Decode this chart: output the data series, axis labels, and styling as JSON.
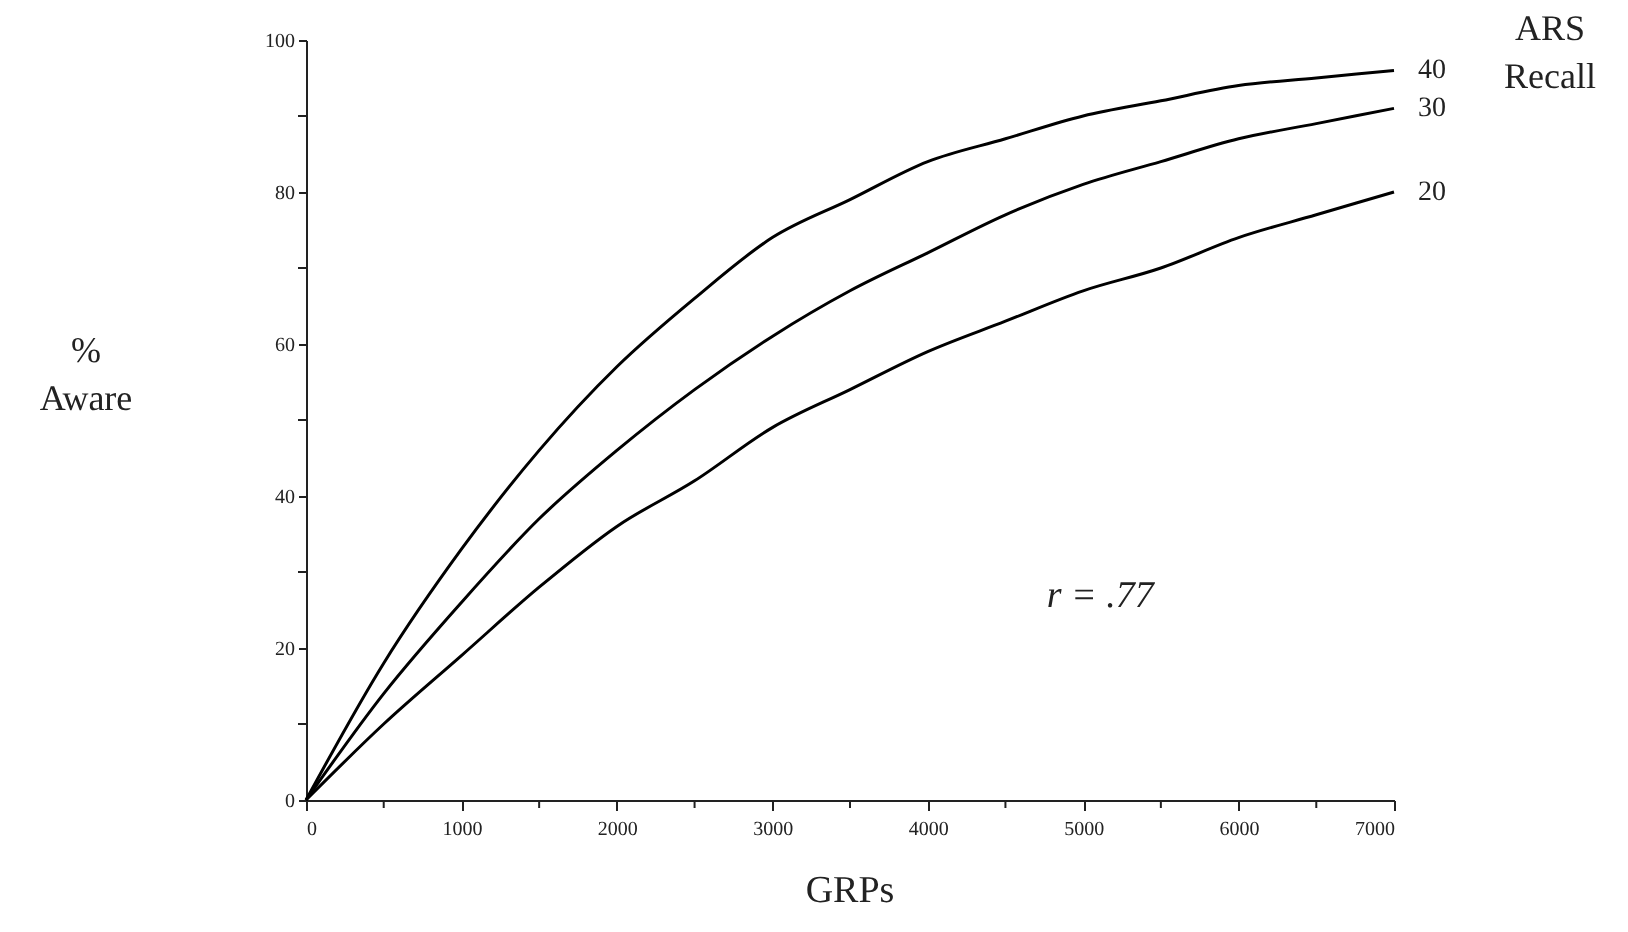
{
  "chart_data": {
    "type": "line",
    "xlabel": "GRPs",
    "ylabel": "%\nAware",
    "legend_title": "ARS\nRecall",
    "x": [
      0,
      500,
      1000,
      1500,
      2000,
      2500,
      3000,
      3500,
      4000,
      4500,
      5000,
      5500,
      6000,
      6500,
      7000
    ],
    "series": [
      {
        "name": "40",
        "color": "#000000",
        "values": [
          0,
          18,
          33,
          46,
          57,
          66,
          74,
          79,
          84,
          87,
          90,
          92,
          94,
          95,
          96
        ]
      },
      {
        "name": "30",
        "color": "#000000",
        "values": [
          0,
          14,
          26,
          37,
          46,
          54,
          61,
          67,
          72,
          77,
          81,
          84,
          87,
          89,
          91
        ]
      },
      {
        "name": "20",
        "color": "#000000",
        "values": [
          0,
          10,
          19,
          28,
          36,
          42,
          49,
          54,
          59,
          63,
          67,
          70,
          74,
          77,
          80
        ]
      }
    ],
    "xlim": [
      0,
      7000
    ],
    "ylim": [
      0,
      100
    ],
    "xticks": [
      0,
      {
        "value": 500,
        "label": null
      },
      1000,
      {
        "value": 1500,
        "label": null
      },
      2000,
      {
        "value": 2500,
        "label": null
      },
      3000,
      {
        "value": 3500,
        "label": null
      },
      4000,
      {
        "value": 4500,
        "label": null
      },
      5000,
      {
        "value": 5500,
        "label": null
      },
      6000,
      {
        "value": 6500,
        "label": null
      },
      7000
    ],
    "yticks": [
      0,
      {
        "value": 10,
        "label": null
      },
      20,
      {
        "value": 30,
        "label": null
      },
      40,
      {
        "value": 50,
        "label": null
      },
      60,
      {
        "value": 70,
        "label": null
      },
      80,
      {
        "value": 90,
        "label": null
      },
      100
    ],
    "annotations": [
      "r = .77"
    ],
    "grid": false,
    "legend": "right",
    "marker": "none",
    "line_style": "solid"
  }
}
